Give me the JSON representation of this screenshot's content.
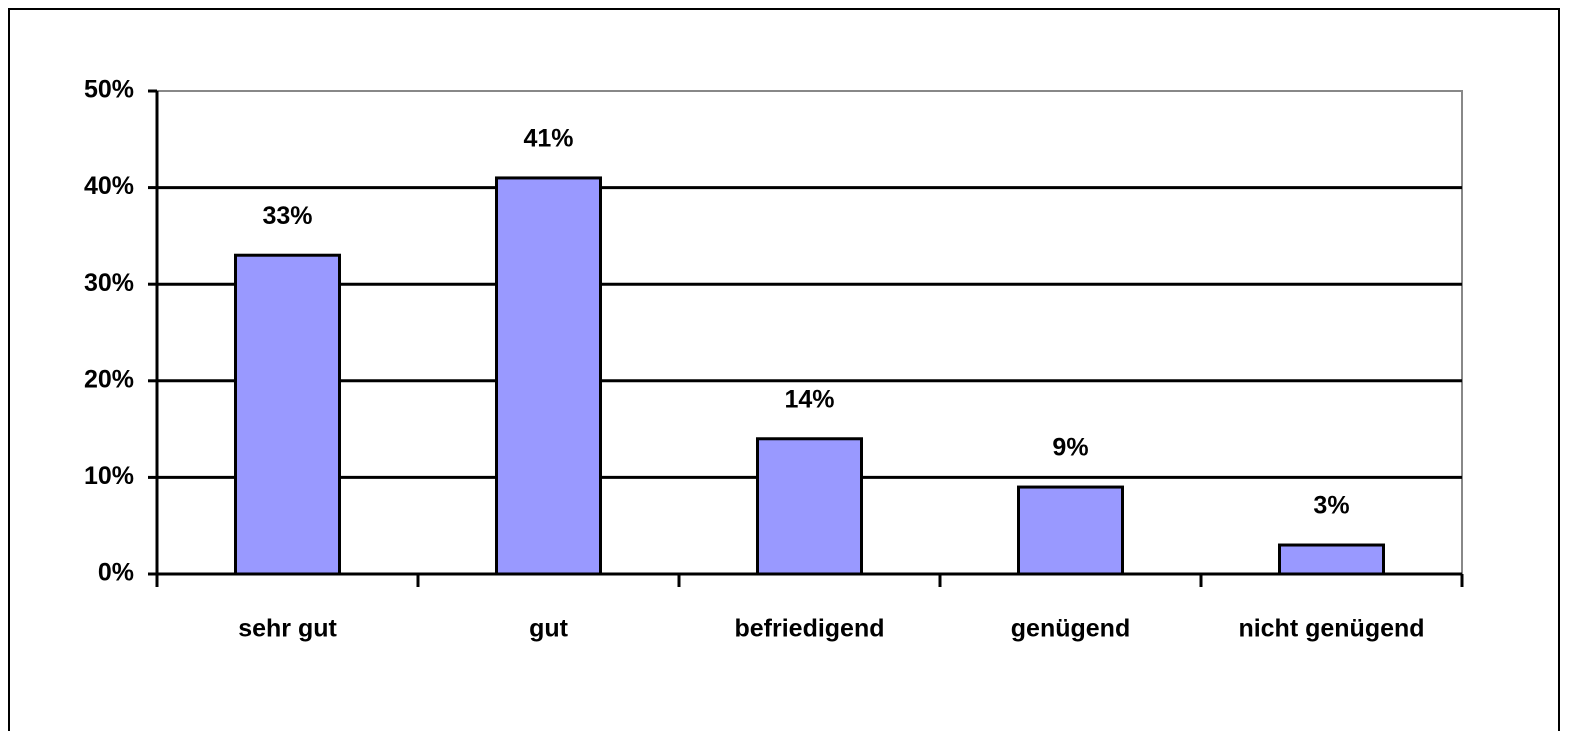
{
  "chart_data": {
    "type": "bar",
    "categories": [
      "sehr gut",
      "gut",
      "befriedigend",
      "genügend",
      "nicht genügend"
    ],
    "values": [
      33,
      41,
      14,
      9,
      3
    ],
    "value_labels": [
      "33%",
      "41%",
      "14%",
      "9%",
      "3%"
    ],
    "color": "#9999ff",
    "ylim": [
      0,
      50
    ],
    "yticks": [
      {
        "value": 0,
        "label": "0%"
      },
      {
        "value": 10,
        "label": "10%"
      },
      {
        "value": 20,
        "label": "20%"
      },
      {
        "value": 30,
        "label": "30%"
      },
      {
        "value": 40,
        "label": "40%"
      },
      {
        "value": 50,
        "label": "50%"
      }
    ],
    "grid": true
  }
}
